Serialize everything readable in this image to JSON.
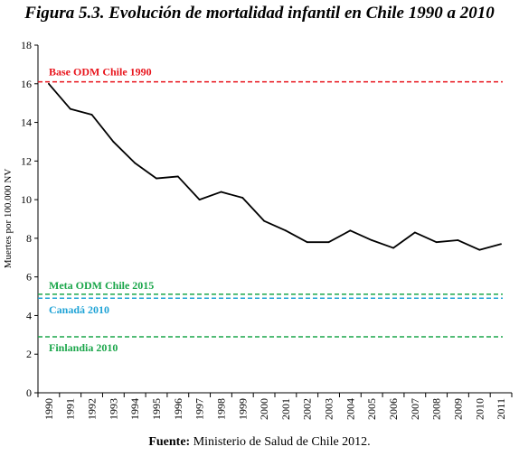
{
  "figure_title": "Figura 5.3. Evolución de mortalidad infantil en Chile 1990 a 2010",
  "source": {
    "label": "Fuente:",
    "text": "Ministerio de Salud de Chile 2012."
  },
  "chart_data": {
    "type": "line",
    "title": "Figura 5.3. Evolución de mortalidad infantil en Chile 1990 a 2010",
    "xlabel": "",
    "ylabel": "Muertes por 100.000 NV",
    "ylim": [
      0,
      18
    ],
    "yticks": [
      0,
      2,
      4,
      6,
      8,
      10,
      12,
      14,
      16,
      18
    ],
    "grid": false,
    "categories": [
      "1990",
      "1991",
      "1992",
      "1993",
      "1994",
      "1995",
      "1996",
      "1997",
      "1998",
      "1999",
      "2000",
      "2001",
      "2002",
      "2003",
      "2004",
      "2005",
      "2006",
      "2007",
      "2008",
      "2009",
      "2010",
      "2011"
    ],
    "series": [
      {
        "values": [
          16.0,
          14.7,
          14.4,
          13.0,
          11.9,
          11.1,
          11.2,
          10.0,
          10.4,
          10.1,
          8.9,
          8.4,
          7.8,
          7.8,
          8.4,
          7.9,
          7.5,
          8.3,
          7.8,
          7.9,
          7.4,
          7.7
        ],
        "color": "#000000"
      }
    ],
    "reference_lines": [
      {
        "label": "Base ODM Chile 1990",
        "value": 16.1,
        "color": "#e8141c"
      },
      {
        "label": "Meta ODM Chile 2015",
        "value": 5.1,
        "color": "#1aa64a"
      },
      {
        "label": "Canadá 2010",
        "value": 4.9,
        "color": "#1fa3d6"
      },
      {
        "label": "Finlandia 2010",
        "value": 2.9,
        "color": "#1aa64a"
      }
    ]
  }
}
